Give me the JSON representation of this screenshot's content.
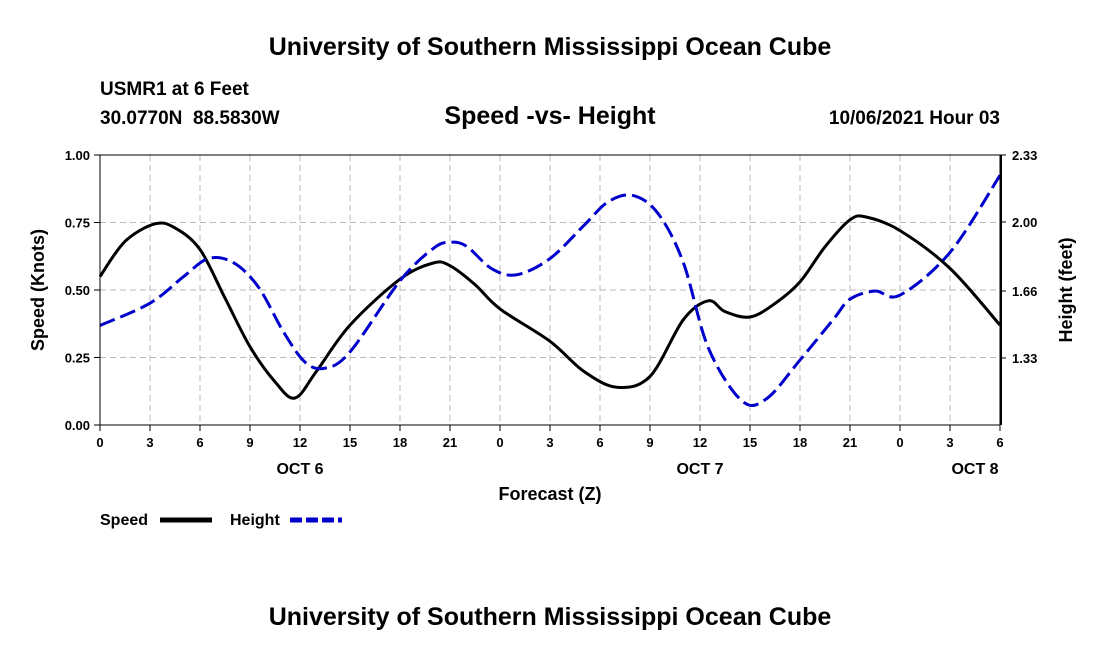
{
  "chart_data": {
    "type": "line",
    "title": "Speed -vs- Height",
    "header": {
      "top_title": "University of Southern Mississippi Ocean Cube",
      "bottom_title": "University of Southern Mississippi Ocean Cube",
      "station": "USMR1 at 6 Feet",
      "coords": "30.0770N  88.5830W",
      "datetime": "10/06/2021 Hour 03"
    },
    "xlabel": "Forecast (Z)",
    "ylabel_left": "Speed (Knots)",
    "ylabel_right": "Height (feet)",
    "x_range": [
      0,
      54
    ],
    "y_left_range": [
      0,
      1
    ],
    "y_right_range": [
      1.0,
      2.33
    ],
    "x_ticks": [
      {
        "x": 0,
        "label": "0"
      },
      {
        "x": 3,
        "label": "3"
      },
      {
        "x": 6,
        "label": "6"
      },
      {
        "x": 9,
        "label": "9"
      },
      {
        "x": 12,
        "label": "12"
      },
      {
        "x": 15,
        "label": "15"
      },
      {
        "x": 18,
        "label": "18"
      },
      {
        "x": 21,
        "label": "21"
      },
      {
        "x": 24,
        "label": "0"
      },
      {
        "x": 27,
        "label": "3"
      },
      {
        "x": 30,
        "label": "6"
      },
      {
        "x": 33,
        "label": "9"
      },
      {
        "x": 36,
        "label": "12"
      },
      {
        "x": 39,
        "label": "15"
      },
      {
        "x": 42,
        "label": "18"
      },
      {
        "x": 45,
        "label": "21"
      },
      {
        "x": 48,
        "label": "0"
      },
      {
        "x": 51,
        "label": "3"
      },
      {
        "x": 54,
        "label": "6"
      }
    ],
    "date_labels": [
      {
        "x": 12,
        "label": "OCT 6"
      },
      {
        "x": 36,
        "label": "OCT 7"
      },
      {
        "x": 52.5,
        "label": "OCT 8"
      }
    ],
    "y_left_ticks": [
      {
        "v": 0.0,
        "label": "0.00"
      },
      {
        "v": 0.25,
        "label": "0.25"
      },
      {
        "v": 0.5,
        "label": "0.50"
      },
      {
        "v": 0.75,
        "label": "0.75"
      },
      {
        "v": 1.0,
        "label": "1.00"
      }
    ],
    "y_right_ticks": [
      {
        "v": 1.33,
        "label": "1.33"
      },
      {
        "v": 1.66,
        "label": "1.66"
      },
      {
        "v": 2.0,
        "label": "2.00"
      },
      {
        "v": 2.33,
        "label": "2.33"
      }
    ],
    "series": [
      {
        "name": "Speed",
        "axis": "left",
        "color": "#000000",
        "dash": "solid",
        "x": [
          0,
          1.5,
          3.3,
          4.5,
          6,
          7.5,
          9,
          10.5,
          11.7,
          13,
          15,
          18,
          20,
          21,
          22.5,
          24,
          27,
          29,
          31,
          33,
          35,
          36.5,
          37.5,
          39,
          40.5,
          42,
          43.5,
          45,
          46,
          48,
          51,
          54
        ],
        "values": [
          0.55,
          0.68,
          0.745,
          0.73,
          0.65,
          0.47,
          0.29,
          0.16,
          0.1,
          0.2,
          0.37,
          0.54,
          0.6,
          0.59,
          0.52,
          0.43,
          0.31,
          0.2,
          0.14,
          0.18,
          0.39,
          0.46,
          0.42,
          0.4,
          0.45,
          0.53,
          0.66,
          0.76,
          0.77,
          0.72,
          0.58,
          0.37
        ]
      },
      {
        "name": "Height",
        "axis": "right",
        "color": "#0000cc",
        "dash": "dashed",
        "x": [
          0,
          3,
          5,
          6.5,
          8,
          9.5,
          11,
          12.3,
          13.5,
          15,
          18,
          20,
          21,
          22,
          23.5,
          25,
          27,
          29,
          30.5,
          32,
          33.5,
          35,
          36.5,
          38.5,
          40,
          42,
          44,
          45,
          46.5,
          48,
          51,
          54
        ],
        "values": [
          1.49,
          1.6,
          1.73,
          1.82,
          1.8,
          1.68,
          1.46,
          1.31,
          1.28,
          1.36,
          1.71,
          1.87,
          1.9,
          1.88,
          1.77,
          1.74,
          1.82,
          1.98,
          2.1,
          2.13,
          2.04,
          1.8,
          1.38,
          1.12,
          1.13,
          1.32,
          1.52,
          1.62,
          1.66,
          1.64,
          1.85,
          2.23
        ]
      }
    ],
    "legend": [
      {
        "label": "Speed",
        "color": "#000000",
        "dash": "solid"
      },
      {
        "label": "Height",
        "color": "#0000cc",
        "dash": "dashed"
      }
    ],
    "grid": true
  }
}
